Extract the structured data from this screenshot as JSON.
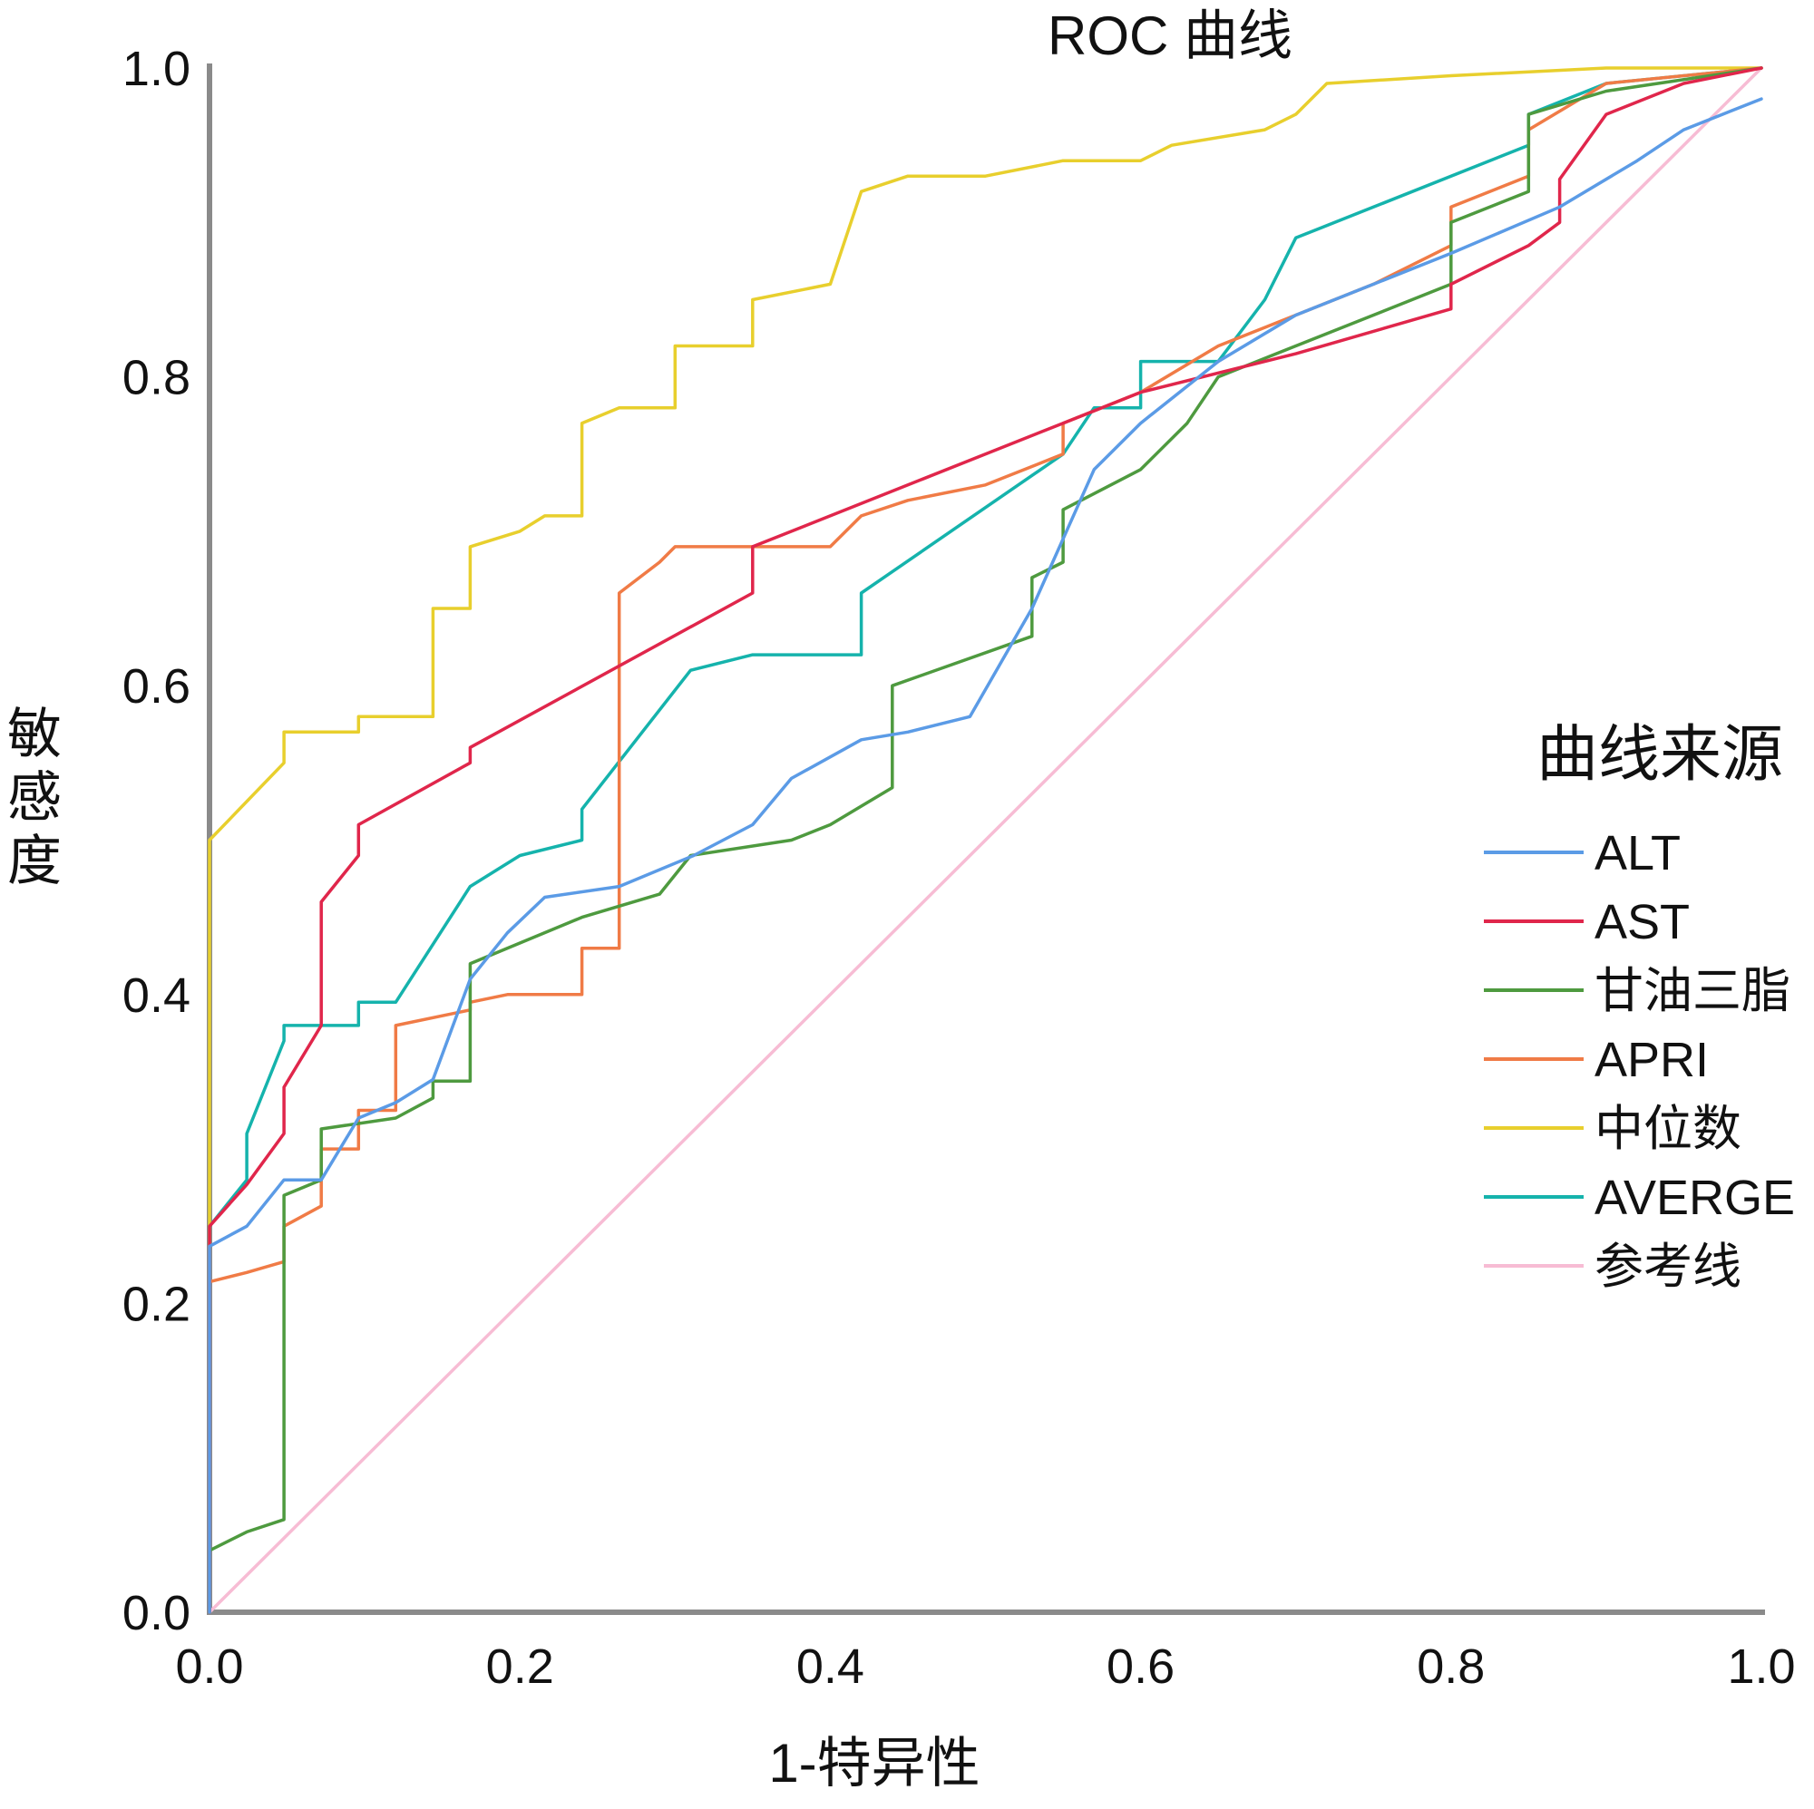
{
  "chart_data": {
    "type": "line",
    "title": "ROC 曲线",
    "xlabel": "1-特异性",
    "ylabel": "敏感度",
    "xlim": [
      0,
      1
    ],
    "ylim": [
      0,
      1
    ],
    "x_ticks": [
      "0.0",
      "0.2",
      "0.4",
      "0.6",
      "0.8",
      "1.0"
    ],
    "y_ticks": [
      "0.0",
      "0.2",
      "0.4",
      "0.6",
      "0.8",
      "1.0"
    ],
    "legend_title": "曲线来源",
    "legend_position": "right",
    "series": [
      {
        "name": "ALT",
        "color": "#5b9be6",
        "points": [
          [
            0,
            0
          ],
          [
            0,
            0.237
          ],
          [
            0.024,
            0.25
          ],
          [
            0.048,
            0.28
          ],
          [
            0.072,
            0.28
          ],
          [
            0.096,
            0.32
          ],
          [
            0.12,
            0.33
          ],
          [
            0.144,
            0.345
          ],
          [
            0.168,
            0.41
          ],
          [
            0.192,
            0.44
          ],
          [
            0.216,
            0.463
          ],
          [
            0.264,
            0.47
          ],
          [
            0.312,
            0.49
          ],
          [
            0.35,
            0.51
          ],
          [
            0.375,
            0.54
          ],
          [
            0.42,
            0.565
          ],
          [
            0.45,
            0.57
          ],
          [
            0.49,
            0.58
          ],
          [
            0.53,
            0.65
          ],
          [
            0.57,
            0.74
          ],
          [
            0.6,
            0.77
          ],
          [
            0.65,
            0.81
          ],
          [
            0.7,
            0.84
          ],
          [
            0.8,
            0.88
          ],
          [
            0.87,
            0.91
          ],
          [
            0.92,
            0.94
          ],
          [
            0.95,
            0.96
          ],
          [
            1,
            0.98
          ]
        ]
      },
      {
        "name": "AST",
        "color": "#e0264b",
        "points": [
          [
            0,
            0
          ],
          [
            0,
            0.25
          ],
          [
            0.024,
            0.277
          ],
          [
            0.048,
            0.31
          ],
          [
            0.048,
            0.34
          ],
          [
            0.072,
            0.38
          ],
          [
            0.072,
            0.46
          ],
          [
            0.096,
            0.49
          ],
          [
            0.096,
            0.51
          ],
          [
            0.168,
            0.55
          ],
          [
            0.168,
            0.56
          ],
          [
            0.35,
            0.66
          ],
          [
            0.35,
            0.69
          ],
          [
            0.55,
            0.77
          ],
          [
            0.6,
            0.79
          ],
          [
            0.7,
            0.815
          ],
          [
            0.8,
            0.844
          ],
          [
            0.8,
            0.86
          ],
          [
            0.85,
            0.885
          ],
          [
            0.87,
            0.9
          ],
          [
            0.87,
            0.928
          ],
          [
            0.9,
            0.97
          ],
          [
            0.95,
            0.99
          ],
          [
            1,
            1
          ]
        ]
      },
      {
        "name": "甘油三脂",
        "color": "#4e9a3f",
        "points": [
          [
            0,
            0
          ],
          [
            0,
            0.04
          ],
          [
            0.024,
            0.052
          ],
          [
            0.048,
            0.06
          ],
          [
            0.048,
            0.27
          ],
          [
            0.072,
            0.28
          ],
          [
            0.072,
            0.313
          ],
          [
            0.12,
            0.32
          ],
          [
            0.144,
            0.333
          ],
          [
            0.144,
            0.344
          ],
          [
            0.168,
            0.344
          ],
          [
            0.168,
            0.42
          ],
          [
            0.24,
            0.45
          ],
          [
            0.29,
            0.465
          ],
          [
            0.31,
            0.49
          ],
          [
            0.375,
            0.5
          ],
          [
            0.4,
            0.51
          ],
          [
            0.44,
            0.534
          ],
          [
            0.44,
            0.6
          ],
          [
            0.53,
            0.632
          ],
          [
            0.53,
            0.67
          ],
          [
            0.55,
            0.68
          ],
          [
            0.55,
            0.714
          ],
          [
            0.6,
            0.74
          ],
          [
            0.63,
            0.77
          ],
          [
            0.65,
            0.8
          ],
          [
            0.7,
            0.82
          ],
          [
            0.75,
            0.84
          ],
          [
            0.8,
            0.86
          ],
          [
            0.8,
            0.9
          ],
          [
            0.85,
            0.92
          ],
          [
            0.85,
            0.97
          ],
          [
            0.9,
            0.985
          ],
          [
            1,
            1
          ]
        ]
      },
      {
        "name": "APRI",
        "color": "#f07b46",
        "points": [
          [
            0,
            0
          ],
          [
            0,
            0.214
          ],
          [
            0.024,
            0.22
          ],
          [
            0.048,
            0.227
          ],
          [
            0.048,
            0.25
          ],
          [
            0.072,
            0.263
          ],
          [
            0.072,
            0.3
          ],
          [
            0.096,
            0.3
          ],
          [
            0.096,
            0.325
          ],
          [
            0.12,
            0.325
          ],
          [
            0.12,
            0.38
          ],
          [
            0.168,
            0.39
          ],
          [
            0.168,
            0.395
          ],
          [
            0.192,
            0.4
          ],
          [
            0.24,
            0.4
          ],
          [
            0.24,
            0.43
          ],
          [
            0.264,
            0.43
          ],
          [
            0.264,
            0.66
          ],
          [
            0.29,
            0.68
          ],
          [
            0.3,
            0.69
          ],
          [
            0.35,
            0.69
          ],
          [
            0.4,
            0.69
          ],
          [
            0.42,
            0.71
          ],
          [
            0.45,
            0.72
          ],
          [
            0.5,
            0.73
          ],
          [
            0.55,
            0.75
          ],
          [
            0.55,
            0.77
          ],
          [
            0.6,
            0.79
          ],
          [
            0.65,
            0.82
          ],
          [
            0.7,
            0.84
          ],
          [
            0.75,
            0.86
          ],
          [
            0.8,
            0.885
          ],
          [
            0.8,
            0.91
          ],
          [
            0.85,
            0.93
          ],
          [
            0.85,
            0.96
          ],
          [
            0.9,
            0.99
          ],
          [
            1,
            1
          ]
        ]
      },
      {
        "name": "中位数",
        "color": "#e8cf2d",
        "points": [
          [
            0,
            0
          ],
          [
            0,
            0.5
          ],
          [
            0.048,
            0.55
          ],
          [
            0.048,
            0.57
          ],
          [
            0.096,
            0.57
          ],
          [
            0.096,
            0.58
          ],
          [
            0.144,
            0.58
          ],
          [
            0.144,
            0.65
          ],
          [
            0.168,
            0.65
          ],
          [
            0.168,
            0.69
          ],
          [
            0.2,
            0.7
          ],
          [
            0.216,
            0.71
          ],
          [
            0.24,
            0.71
          ],
          [
            0.24,
            0.77
          ],
          [
            0.264,
            0.78
          ],
          [
            0.3,
            0.78
          ],
          [
            0.3,
            0.82
          ],
          [
            0.35,
            0.82
          ],
          [
            0.35,
            0.85
          ],
          [
            0.4,
            0.86
          ],
          [
            0.42,
            0.92
          ],
          [
            0.45,
            0.93
          ],
          [
            0.5,
            0.93
          ],
          [
            0.55,
            0.94
          ],
          [
            0.6,
            0.94
          ],
          [
            0.62,
            0.95
          ],
          [
            0.68,
            0.96
          ],
          [
            0.7,
            0.97
          ],
          [
            0.72,
            0.99
          ],
          [
            0.8,
            0.995
          ],
          [
            0.9,
            1
          ],
          [
            1,
            1
          ]
        ]
      },
      {
        "name": "AVERGE",
        "color": "#15b3ac",
        "points": [
          [
            0,
            0
          ],
          [
            0,
            0.25
          ],
          [
            0.024,
            0.28
          ],
          [
            0.024,
            0.31
          ],
          [
            0.048,
            0.37
          ],
          [
            0.048,
            0.38
          ],
          [
            0.096,
            0.38
          ],
          [
            0.096,
            0.395
          ],
          [
            0.12,
            0.395
          ],
          [
            0.168,
            0.47
          ],
          [
            0.2,
            0.49
          ],
          [
            0.24,
            0.5
          ],
          [
            0.24,
            0.52
          ],
          [
            0.31,
            0.61
          ],
          [
            0.35,
            0.62
          ],
          [
            0.42,
            0.62
          ],
          [
            0.42,
            0.66
          ],
          [
            0.55,
            0.75
          ],
          [
            0.57,
            0.78
          ],
          [
            0.6,
            0.78
          ],
          [
            0.6,
            0.81
          ],
          [
            0.65,
            0.81
          ],
          [
            0.68,
            0.85
          ],
          [
            0.7,
            0.89
          ],
          [
            0.75,
            0.91
          ],
          [
            0.85,
            0.95
          ],
          [
            0.85,
            0.97
          ],
          [
            0.9,
            0.99
          ],
          [
            1,
            1
          ]
        ]
      },
      {
        "name": "参考线",
        "color": "#f7bcd4",
        "points": [
          [
            0,
            0
          ],
          [
            1,
            1
          ]
        ]
      }
    ]
  }
}
